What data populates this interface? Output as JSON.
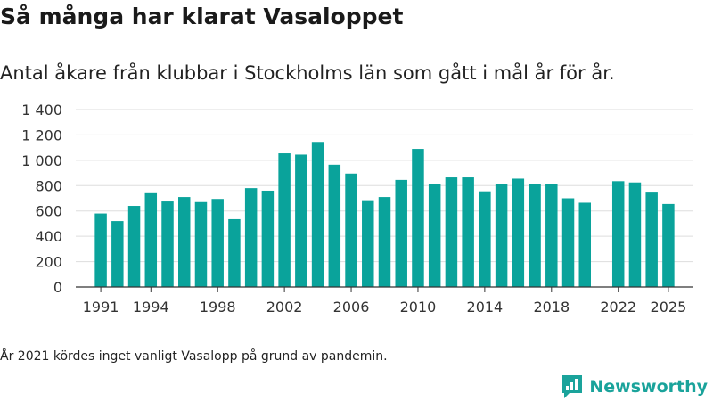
{
  "title": "Så många har klarat Vasaloppet",
  "subtitle": "Antal åkare från klubbar i Stockholms län som gått i mål år för år.",
  "footnote": "År 2021 kördes inget vanligt Vasalopp på grund av pandemin.",
  "brand": {
    "name": "Newsworthy",
    "color": "#1aa39b"
  },
  "colors": {
    "bar": "#0aa39b",
    "grid": "#dddddd",
    "axis": "#333333"
  },
  "chart_data": {
    "type": "bar",
    "title": "",
    "xlabel": "",
    "ylabel": "",
    "ylim": [
      0,
      1400
    ],
    "xlim": [
      1989.5,
      2026.5
    ],
    "grid": true,
    "yticks": [
      0,
      200,
      400,
      600,
      800,
      1000,
      1200,
      1400
    ],
    "ytick_labels": [
      "0",
      "200",
      "400",
      "600",
      "800",
      "1 000",
      "1 200",
      "1 400"
    ],
    "xticks": [
      1991,
      1994,
      1998,
      2002,
      2006,
      2010,
      2014,
      2018,
      2022,
      2025
    ],
    "xtick_labels": [
      "1991",
      "1994",
      "1998",
      "2002",
      "2006",
      "2010",
      "2014",
      "2018",
      "2022",
      "2025"
    ],
    "categories": [
      1991,
      1992,
      1993,
      1994,
      1995,
      1996,
      1997,
      1998,
      1999,
      2000,
      2001,
      2002,
      2003,
      2004,
      2005,
      2006,
      2007,
      2008,
      2009,
      2010,
      2011,
      2012,
      2013,
      2014,
      2015,
      2016,
      2017,
      2018,
      2019,
      2020,
      2022,
      2023,
      2024,
      2025
    ],
    "values": [
      580,
      520,
      640,
      740,
      675,
      710,
      670,
      695,
      535,
      780,
      760,
      1055,
      1045,
      1145,
      965,
      895,
      685,
      710,
      845,
      1090,
      815,
      865,
      865,
      755,
      815,
      855,
      810,
      815,
      700,
      665,
      835,
      825,
      745,
      655
    ]
  }
}
